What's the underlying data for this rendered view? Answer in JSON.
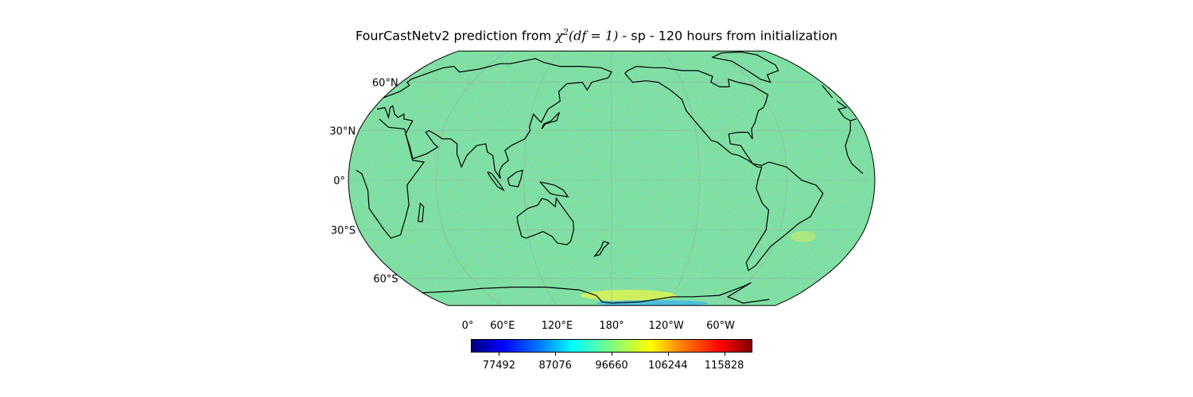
{
  "title": {
    "prefix": "FourCastNetv2 prediction from ",
    "chi": "χ",
    "sup": "2",
    "args": "(df = 1)",
    "suffix": " - sp - 120 hours from initialization"
  },
  "map": {
    "projection": "robinson",
    "central_longitude": 180,
    "lat_labels": [
      {
        "text": "60°N",
        "lat": 60
      },
      {
        "text": "30°N",
        "lat": 30
      },
      {
        "text": "0°",
        "lat": 0
      },
      {
        "text": "30°S",
        "lat": -30
      },
      {
        "text": "60°S",
        "lat": -60
      }
    ],
    "lon_labels": [
      {
        "text": "0°",
        "lon": 0
      },
      {
        "text": "60°E",
        "lon": 60
      },
      {
        "text": "120°E",
        "lon": 120
      },
      {
        "text": "180°",
        "lon": 180
      },
      {
        "text": "120°W",
        "lon": -120
      },
      {
        "text": "60°W",
        "lon": -60
      }
    ],
    "gridlines": true,
    "field": "noisy surface pressure, mostly cyan/green"
  },
  "colorbar": {
    "cmap": "jet",
    "range": [
      72700,
      120620
    ],
    "ticks": [
      "77492",
      "87076",
      "96660",
      "106244",
      "115828"
    ]
  }
}
